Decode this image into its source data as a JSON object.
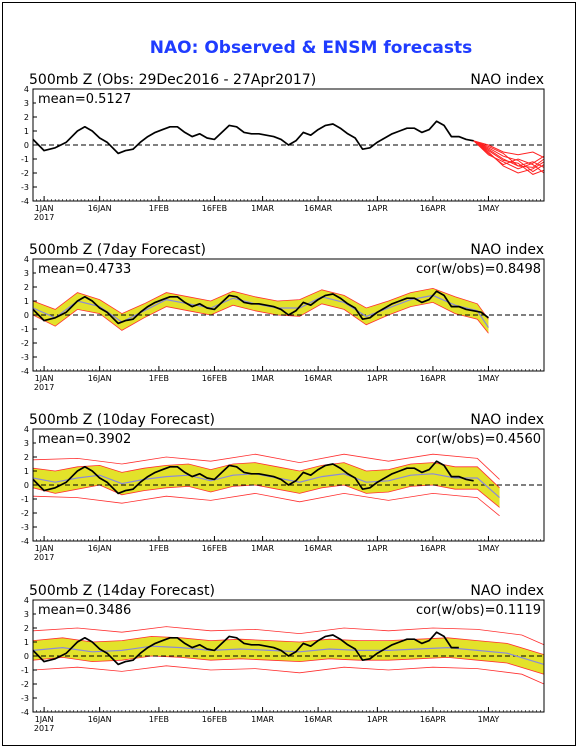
{
  "title": "NAO: Observed & ENSM forecasts",
  "x_ticks": [
    "1JAN",
    "16JAN",
    "1FEB",
    "16FEB",
    "1MAR",
    "16MAR",
    "1APR",
    "16APR",
    "1MAY"
  ],
  "x_year": "2017",
  "y_ticks": [
    "4",
    "3",
    "2",
    "1",
    "0",
    "-1",
    "-2",
    "-3",
    "-4"
  ],
  "colors": {
    "title": "#1f3cff",
    "observed": "#000000",
    "members": "#ff2020",
    "spread_fill": "#e3e22a",
    "spread_edge": "#ff3030",
    "ens_mean": "#8a8ad8",
    "zero_line": "#000000"
  },
  "chart_data": [
    {
      "type": "line",
      "left_label": "500mb  Z  (Obs: 29Dec2016 - 27Apr2017)",
      "right_label": "NAO index",
      "mean_label": "mean=0.5127",
      "cor_label": "",
      "ylim": [
        -4,
        4
      ],
      "x_range_days": [
        -3,
        135
      ],
      "observed": {
        "x": [
          -3,
          0,
          3,
          6,
          9,
          11,
          13,
          15,
          17,
          20,
          22,
          24,
          26,
          28,
          30,
          32,
          34,
          36,
          38,
          40,
          42,
          44,
          46,
          48,
          50,
          52,
          54,
          56,
          58,
          60,
          62,
          64,
          66,
          68,
          70,
          72,
          74,
          76,
          78,
          80,
          82,
          84,
          86,
          88,
          90,
          92,
          94,
          96,
          98,
          100,
          102,
          104,
          106,
          108,
          110,
          112,
          114,
          116
        ],
        "y": [
          0.4,
          -0.4,
          -0.2,
          0.2,
          1.0,
          1.3,
          1.0,
          0.5,
          0.2,
          -0.6,
          -0.4,
          -0.3,
          0.2,
          0.6,
          0.9,
          1.1,
          1.3,
          1.3,
          0.9,
          0.6,
          0.8,
          0.5,
          0.4,
          0.9,
          1.4,
          1.3,
          0.9,
          0.8,
          0.8,
          0.7,
          0.6,
          0.4,
          0.0,
          0.3,
          0.9,
          0.7,
          1.1,
          1.4,
          1.5,
          1.2,
          0.8,
          0.5,
          -0.3,
          -0.2,
          0.2,
          0.5,
          0.8,
          1.0,
          1.2,
          1.2,
          0.9,
          1.1,
          1.7,
          1.4,
          0.6,
          0.6,
          0.4,
          0.3
        ]
      },
      "members": [
        {
          "x": [
            116,
            120,
            124,
            128,
            132,
            135
          ],
          "y": [
            0.3,
            -0.3,
            -1.0,
            -1.5,
            -1.2,
            -1.6
          ]
        },
        {
          "x": [
            116,
            120,
            124,
            128,
            132,
            135
          ],
          "y": [
            0.3,
            0.0,
            -0.5,
            -0.7,
            -0.5,
            -0.9
          ]
        },
        {
          "x": [
            116,
            120,
            124,
            128,
            132,
            135
          ],
          "y": [
            0.3,
            -0.5,
            -1.5,
            -2.0,
            -1.7,
            -1.2
          ]
        },
        {
          "x": [
            116,
            120,
            124,
            128,
            132,
            135
          ],
          "y": [
            0.3,
            -0.2,
            -0.8,
            -1.1,
            -1.9,
            -1.4
          ]
        },
        {
          "x": [
            116,
            120,
            124,
            128,
            132,
            135
          ],
          "y": [
            0.3,
            -0.7,
            -1.2,
            -1.7,
            -1.3,
            -0.8
          ]
        },
        {
          "x": [
            116,
            120,
            124,
            128,
            132,
            135
          ],
          "y": [
            0.3,
            -0.4,
            -1.1,
            -1.3,
            -2.1,
            -1.8
          ]
        },
        {
          "x": [
            116,
            120,
            124,
            128,
            132,
            135
          ],
          "y": [
            0.3,
            -0.1,
            -0.6,
            -1.5,
            -1.6,
            -1.0
          ]
        },
        {
          "x": [
            116,
            120,
            124,
            128,
            132,
            135
          ],
          "y": [
            0.3,
            -0.6,
            -1.4,
            -1.0,
            -1.4,
            -2.0
          ]
        }
      ]
    },
    {
      "type": "line",
      "left_label": "500mb  Z  (7day Forecast)",
      "right_label": "NAO index",
      "mean_label": "mean=0.4733",
      "cor_label": "cor(w/obs)=0.8498",
      "ylim": [
        -4,
        4
      ],
      "x_range_days": [
        -3,
        135
      ],
      "observed": {
        "x": [
          -3,
          0,
          3,
          6,
          9,
          11,
          13,
          15,
          17,
          20,
          22,
          24,
          26,
          28,
          30,
          32,
          34,
          36,
          38,
          40,
          42,
          44,
          46,
          48,
          50,
          52,
          54,
          56,
          58,
          60,
          62,
          64,
          66,
          68,
          70,
          72,
          74,
          76,
          78,
          80,
          82,
          84,
          86,
          88,
          90,
          92,
          94,
          96,
          98,
          100,
          102,
          104,
          106,
          108,
          110,
          112,
          114,
          116,
          118,
          120
        ],
        "y": [
          0.4,
          -0.4,
          -0.2,
          0.2,
          1.0,
          1.3,
          1.0,
          0.5,
          0.2,
          -0.6,
          -0.4,
          -0.3,
          0.2,
          0.6,
          0.9,
          1.1,
          1.3,
          1.3,
          0.9,
          0.6,
          0.8,
          0.5,
          0.4,
          0.9,
          1.4,
          1.3,
          0.9,
          0.8,
          0.8,
          0.7,
          0.6,
          0.4,
          0.0,
          0.3,
          0.9,
          0.7,
          1.1,
          1.4,
          1.5,
          1.2,
          0.8,
          0.5,
          -0.3,
          -0.2,
          0.2,
          0.5,
          0.8,
          1.0,
          1.2,
          1.2,
          0.9,
          1.1,
          1.7,
          1.4,
          0.6,
          0.6,
          0.4,
          0.3,
          0.2,
          -0.2
        ]
      },
      "ens_mean": {
        "x": [
          -3,
          3,
          9,
          15,
          21,
          27,
          33,
          39,
          45,
          51,
          57,
          63,
          69,
          75,
          81,
          87,
          93,
          99,
          105,
          111,
          117,
          120
        ],
        "y": [
          0.5,
          -0.2,
          1.0,
          0.6,
          -0.5,
          0.3,
          1.1,
          0.8,
          0.5,
          1.2,
          0.8,
          0.5,
          0.5,
          1.3,
          0.9,
          -0.1,
          0.5,
          1.1,
          1.4,
          0.7,
          0.3,
          -0.9
        ]
      },
      "spread_upper": {
        "x": [
          -3,
          3,
          9,
          15,
          21,
          27,
          33,
          39,
          45,
          51,
          57,
          63,
          69,
          75,
          81,
          87,
          93,
          99,
          105,
          111,
          117,
          120
        ],
        "y": [
          1.0,
          0.4,
          1.6,
          1.1,
          0.1,
          0.8,
          1.6,
          1.3,
          1.0,
          1.7,
          1.3,
          1.0,
          1.1,
          1.8,
          1.4,
          0.5,
          1.0,
          1.6,
          1.9,
          1.3,
          0.8,
          -0.3
        ]
      },
      "spread_lower": {
        "x": [
          -3,
          3,
          9,
          15,
          21,
          27,
          33,
          39,
          45,
          51,
          57,
          63,
          69,
          75,
          81,
          87,
          93,
          99,
          105,
          111,
          117,
          120
        ],
        "y": [
          0.0,
          -0.8,
          0.4,
          0.1,
          -1.1,
          -0.2,
          0.6,
          0.3,
          0.0,
          0.7,
          0.3,
          0.0,
          -0.1,
          0.8,
          0.4,
          -0.7,
          0.0,
          0.6,
          0.9,
          0.1,
          -0.3,
          -1.3
        ]
      }
    },
    {
      "type": "line",
      "left_label": "500mb  Z  (10day Forecast)",
      "right_label": "NAO index",
      "mean_label": "mean=0.3902",
      "cor_label": "cor(w/obs)=0.4560",
      "ylim": [
        -4,
        4
      ],
      "x_range_days": [
        -3,
        135
      ],
      "observed": {
        "x": [
          -3,
          0,
          3,
          6,
          9,
          11,
          13,
          15,
          17,
          20,
          22,
          24,
          26,
          28,
          30,
          32,
          34,
          36,
          38,
          40,
          42,
          44,
          46,
          48,
          50,
          52,
          54,
          56,
          58,
          60,
          62,
          64,
          66,
          68,
          70,
          72,
          74,
          76,
          78,
          80,
          82,
          84,
          86,
          88,
          90,
          92,
          94,
          96,
          98,
          100,
          102,
          104,
          106,
          108,
          110,
          112,
          114,
          116
        ],
        "y": [
          0.4,
          -0.4,
          -0.2,
          0.2,
          1.0,
          1.3,
          1.0,
          0.5,
          0.2,
          -0.6,
          -0.4,
          -0.3,
          0.2,
          0.6,
          0.9,
          1.1,
          1.3,
          1.3,
          0.9,
          0.6,
          0.8,
          0.5,
          0.4,
          0.9,
          1.4,
          1.3,
          0.9,
          0.8,
          0.8,
          0.7,
          0.6,
          0.4,
          0.0,
          0.3,
          0.9,
          0.7,
          1.1,
          1.4,
          1.5,
          1.2,
          0.8,
          0.5,
          -0.3,
          -0.2,
          0.2,
          0.5,
          0.8,
          1.0,
          1.2,
          1.2,
          0.9,
          1.1,
          1.7,
          1.4,
          0.6,
          0.6,
          0.4,
          0.3
        ]
      },
      "ens_mean": {
        "x": [
          -3,
          3,
          9,
          15,
          21,
          27,
          33,
          39,
          45,
          51,
          57,
          63,
          69,
          75,
          81,
          87,
          93,
          99,
          105,
          111,
          117,
          123
        ],
        "y": [
          0.5,
          0.2,
          0.5,
          0.7,
          0.1,
          0.4,
          0.6,
          0.7,
          0.3,
          0.7,
          0.8,
          0.5,
          0.2,
          0.6,
          0.8,
          0.2,
          0.3,
          0.7,
          0.8,
          0.5,
          0.5,
          -0.9
        ]
      },
      "spread_upper": {
        "x": [
          -3,
          3,
          9,
          15,
          21,
          27,
          33,
          39,
          45,
          51,
          57,
          63,
          69,
          75,
          81,
          87,
          93,
          99,
          105,
          111,
          117,
          123
        ],
        "y": [
          1.2,
          1.0,
          1.3,
          1.4,
          0.9,
          1.2,
          1.4,
          1.5,
          1.1,
          1.5,
          1.6,
          1.3,
          1.0,
          1.4,
          1.6,
          1.0,
          1.1,
          1.5,
          1.6,
          1.3,
          1.3,
          -0.2
        ]
      },
      "spread_lower": {
        "x": [
          -3,
          3,
          9,
          15,
          21,
          27,
          33,
          39,
          45,
          51,
          57,
          63,
          69,
          75,
          81,
          87,
          93,
          99,
          105,
          111,
          117,
          123
        ],
        "y": [
          -0.2,
          -0.6,
          -0.3,
          0.0,
          -0.7,
          -0.4,
          -0.2,
          -0.1,
          -0.5,
          -0.1,
          0.0,
          -0.3,
          -0.6,
          -0.2,
          0.0,
          -0.6,
          -0.5,
          -0.1,
          0.0,
          -0.3,
          -0.3,
          -1.6
        ]
      },
      "spread_outer_upper": {
        "x": [
          -3,
          9,
          21,
          33,
          45,
          57,
          69,
          81,
          93,
          105,
          117,
          123
        ],
        "y": [
          1.8,
          1.9,
          1.5,
          2.0,
          1.7,
          2.2,
          1.6,
          2.2,
          1.7,
          2.2,
          1.9,
          0.4
        ]
      },
      "spread_outer_lower": {
        "x": [
          -3,
          9,
          21,
          33,
          45,
          57,
          69,
          81,
          93,
          105,
          117,
          123
        ],
        "y": [
          -0.8,
          -0.9,
          -1.3,
          -0.8,
          -1.1,
          -0.6,
          -1.2,
          -0.6,
          -1.1,
          -0.6,
          -0.9,
          -2.2
        ]
      }
    },
    {
      "type": "line",
      "left_label": "500mb  Z  (14day Forecast)",
      "right_label": "NAO index",
      "mean_label": "mean=0.3486",
      "cor_label": "cor(w/obs)=0.1119",
      "ylim": [
        -4,
        4
      ],
      "x_range_days": [
        -3,
        135
      ],
      "observed": {
        "x": [
          -3,
          0,
          3,
          6,
          9,
          11,
          13,
          15,
          17,
          20,
          22,
          24,
          26,
          28,
          30,
          32,
          34,
          36,
          38,
          40,
          42,
          44,
          46,
          48,
          50,
          52,
          54,
          56,
          58,
          60,
          62,
          64,
          66,
          68,
          70,
          72,
          74,
          76,
          78,
          80,
          82,
          84,
          86,
          88,
          90,
          92,
          94,
          96,
          98,
          100,
          102,
          104,
          106,
          108,
          110,
          112
        ],
        "y": [
          0.4,
          -0.4,
          -0.2,
          0.2,
          1.0,
          1.3,
          1.0,
          0.5,
          0.2,
          -0.6,
          -0.4,
          -0.3,
          0.2,
          0.6,
          0.9,
          1.1,
          1.3,
          1.3,
          0.9,
          0.6,
          0.8,
          0.5,
          0.4,
          0.9,
          1.4,
          1.3,
          0.9,
          0.8,
          0.8,
          0.7,
          0.6,
          0.4,
          0.0,
          0.3,
          0.9,
          0.7,
          1.1,
          1.4,
          1.5,
          1.2,
          0.8,
          0.5,
          -0.3,
          -0.2,
          0.2,
          0.5,
          0.8,
          1.0,
          1.2,
          1.2,
          0.9,
          1.1,
          1.7,
          1.4,
          0.6,
          0.6
        ]
      },
      "ens_mean": {
        "x": [
          -3,
          5,
          13,
          21,
          29,
          37,
          45,
          53,
          61,
          69,
          77,
          85,
          93,
          101,
          109,
          117,
          125,
          135
        ],
        "y": [
          0.4,
          0.6,
          0.3,
          0.4,
          0.7,
          0.6,
          0.4,
          0.5,
          0.4,
          0.3,
          0.5,
          0.4,
          0.4,
          0.5,
          0.6,
          0.4,
          0.2,
          -0.6
        ]
      },
      "spread_upper": {
        "x": [
          -3,
          5,
          13,
          21,
          29,
          37,
          45,
          53,
          61,
          69,
          77,
          85,
          93,
          101,
          109,
          117,
          125,
          135
        ],
        "y": [
          1.1,
          1.3,
          1.0,
          1.1,
          1.4,
          1.3,
          1.1,
          1.2,
          1.1,
          1.0,
          1.2,
          1.1,
          1.1,
          1.2,
          1.3,
          1.1,
          0.9,
          0.1
        ]
      },
      "spread_lower": {
        "x": [
          -3,
          5,
          13,
          21,
          29,
          37,
          45,
          53,
          61,
          69,
          77,
          85,
          93,
          101,
          109,
          117,
          125,
          135
        ],
        "y": [
          -0.3,
          -0.1,
          -0.4,
          -0.3,
          0.0,
          -0.1,
          -0.3,
          -0.2,
          -0.3,
          -0.4,
          -0.2,
          -0.3,
          -0.3,
          -0.2,
          -0.1,
          -0.3,
          -0.5,
          -1.3
        ]
      },
      "spread_outer_upper": {
        "x": [
          -3,
          9,
          21,
          33,
          45,
          57,
          69,
          81,
          93,
          105,
          117,
          129,
          135
        ],
        "y": [
          1.8,
          2.0,
          1.7,
          2.1,
          1.8,
          1.9,
          1.6,
          2.0,
          1.8,
          2.0,
          1.9,
          1.5,
          0.8
        ]
      },
      "spread_outer_lower": {
        "x": [
          -3,
          9,
          21,
          33,
          45,
          57,
          69,
          81,
          93,
          105,
          117,
          129,
          135
        ],
        "y": [
          -1.0,
          -0.8,
          -1.1,
          -0.7,
          -1.0,
          -0.9,
          -1.2,
          -0.8,
          -1.0,
          -0.8,
          -0.9,
          -1.3,
          -2.0
        ]
      }
    }
  ]
}
